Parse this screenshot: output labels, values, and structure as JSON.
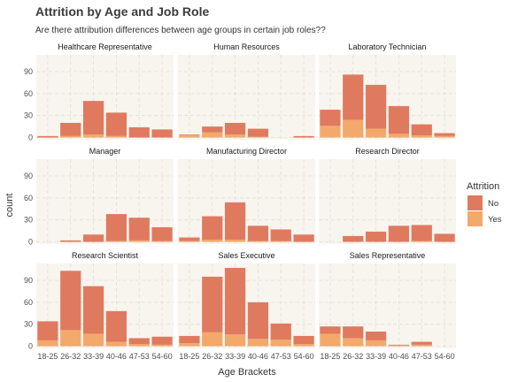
{
  "chart_data": {
    "type": "bar",
    "title": "Attrition by Age and Job Role",
    "subtitle": "Are there attribution differences between age groups in certain job roles??",
    "xlabel": "Age Brackets",
    "ylabel": "count",
    "categories": [
      "18-25",
      "26-32",
      "33-39",
      "40-46",
      "47-53",
      "54-60"
    ],
    "yticks": [
      0,
      30,
      60,
      90
    ],
    "ylim": [
      -3,
      113
    ],
    "grid": true,
    "stacked": true,
    "legend": {
      "title": "Attrition",
      "position": "right",
      "entries": [
        {
          "label": "No",
          "color": "#E07A5F"
        },
        {
          "label": "Yes",
          "color": "#F2A96B"
        }
      ]
    },
    "colors": {
      "No": "#E07A5F",
      "Yes": "#F2A96B",
      "panel_bg": "#F8F5EF",
      "grid": "#E2DDD6"
    },
    "panels": [
      {
        "name": "Healthcare Representative",
        "no": [
          2,
          18,
          46,
          32,
          14,
          11
        ],
        "yes": [
          0,
          2,
          4,
          2,
          0,
          0
        ]
      },
      {
        "name": "Human Resources",
        "no": [
          1,
          8,
          16,
          11,
          0,
          2
        ],
        "yes": [
          3,
          7,
          4,
          1,
          0,
          0
        ]
      },
      {
        "name": "Laboratory Technician",
        "no": [
          22,
          62,
          60,
          38,
          15,
          4
        ],
        "yes": [
          16,
          24,
          12,
          5,
          3,
          2
        ]
      },
      {
        "name": "Manager",
        "no": [
          0,
          2,
          10,
          37,
          31,
          19
        ],
        "yes": [
          0,
          0,
          0,
          1,
          2,
          1
        ]
      },
      {
        "name": "Manufacturing Director",
        "no": [
          5,
          32,
          51,
          21,
          16,
          10
        ],
        "yes": [
          1,
          3,
          3,
          1,
          1,
          0
        ]
      },
      {
        "name": "Research Director",
        "no": [
          0,
          8,
          14,
          22,
          22,
          11
        ],
        "yes": [
          0,
          0,
          0,
          0,
          1,
          0
        ]
      },
      {
        "name": "Research Scientist",
        "no": [
          26,
          81,
          65,
          42,
          8,
          11
        ],
        "yes": [
          8,
          22,
          17,
          6,
          3,
          2
        ]
      },
      {
        "name": "Sales Executive",
        "no": [
          10,
          76,
          91,
          50,
          22,
          11
        ],
        "yes": [
          4,
          19,
          16,
          10,
          9,
          3
        ]
      },
      {
        "name": "Sales Representative",
        "no": [
          10,
          16,
          12,
          1,
          4,
          0
        ],
        "yes": [
          17,
          11,
          8,
          1,
          2,
          0
        ]
      }
    ]
  }
}
